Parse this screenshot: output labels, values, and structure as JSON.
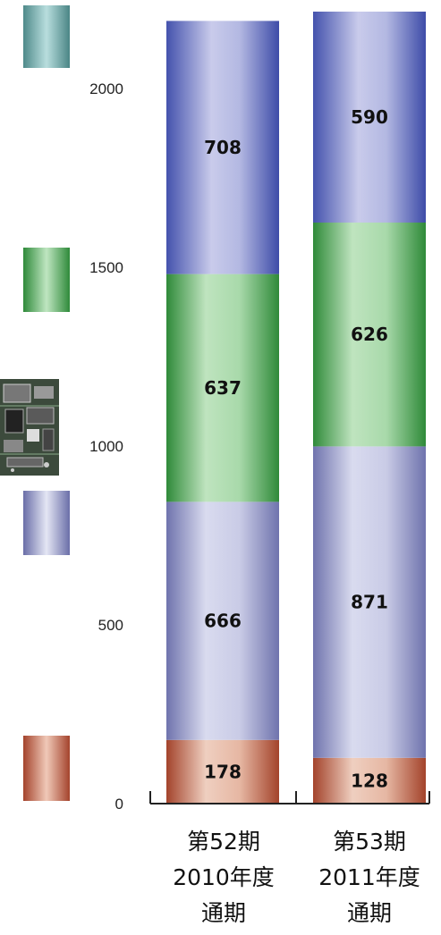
{
  "chart_data": {
    "type": "bar",
    "stacked": true,
    "categories": [
      [
        "第52期",
        "2010年度",
        "通期"
      ],
      [
        "第53期",
        "2011年度",
        "通期"
      ]
    ],
    "series": [
      {
        "values": [
          178,
          128
        ],
        "color": "#b5523a"
      },
      {
        "values": [
          666,
          871
        ],
        "color": "#7b7fb4"
      },
      {
        "values": [
          637,
          626
        ],
        "color": "#3e9a48"
      },
      {
        "values": [
          708,
          590
        ],
        "color": "#4f5cb4"
      }
    ],
    "ylim": [
      0,
      2200
    ],
    "yticks": [
      0,
      500,
      1000,
      1500,
      2000
    ],
    "grid": false
  },
  "legend": {
    "swatch_colors": [
      "#5c9c9c",
      "#3e9a48",
      "#7b7fb4",
      "#b5523a"
    ],
    "chip_image": "circuit-board-icon"
  }
}
